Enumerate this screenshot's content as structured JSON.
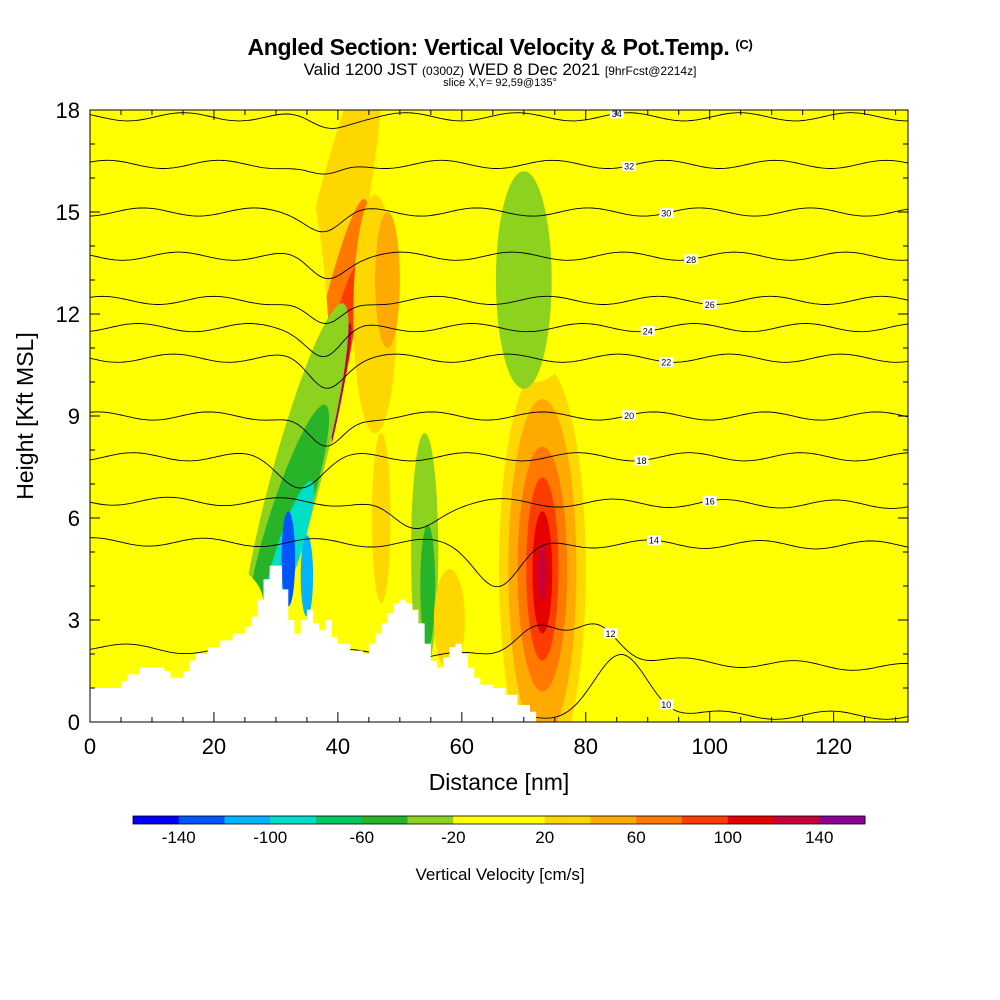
{
  "header": {
    "title": "Angled Section: Vertical Velocity & Pot.Temp.",
    "copyright_mark": "(C)",
    "subtitle_main_a": "Valid 1200 JST",
    "subtitle_z": "(0300Z)",
    "subtitle_main_b": "WED 8 Dec 2021",
    "subtitle_fcst": "[9hrFcst@2214z]",
    "slice_info": "slice X,Y= 92,59@135°"
  },
  "colors": {
    "background_field": "#ffff00",
    "terrain": "#ffffff",
    "isentrope": "#000000",
    "scale": [
      "#0000ff",
      "#0055ff",
      "#00b4ff",
      "#00e0c8",
      "#00c864",
      "#28b428",
      "#8cd21e",
      "#ffff00",
      "#ffd700",
      "#ffaa00",
      "#ff7800",
      "#ff3c00",
      "#e60000",
      "#c8003c",
      "#8c0096"
    ]
  },
  "chart_data": {
    "type": "heatmap",
    "xlabel": "Distance [nm]",
    "ylabel": "Height [Kft MSL]",
    "xlim": [
      0,
      132
    ],
    "ylim": [
      0,
      18
    ],
    "xticks": [
      0,
      20,
      40,
      60,
      80,
      100,
      120
    ],
    "yticks": [
      0,
      3,
      6,
      9,
      12,
      15,
      18
    ],
    "colorbar": {
      "title": "Vertical Velocity [cm/s]",
      "min": -160,
      "max": 160,
      "step": 20,
      "tick_values": [
        -140,
        -100,
        -60,
        -20,
        20,
        60,
        100,
        140
      ],
      "tick_labels": [
        "-140",
        "-100",
        "-60",
        "-20",
        "20",
        "60",
        "100",
        "140"
      ]
    },
    "vertical_velocity_cells": [
      {
        "x": 73,
        "y": 4.5,
        "rx": 7.0,
        "ry": 6.0,
        "w": 30
      },
      {
        "x": 73,
        "y": 4.5,
        "rx": 5.5,
        "ry": 5.0,
        "w": 50
      },
      {
        "x": 73,
        "y": 4.5,
        "rx": 4.0,
        "ry": 3.6,
        "w": 70
      },
      {
        "x": 73,
        "y": 4.5,
        "rx": 2.6,
        "ry": 2.7,
        "w": 90
      },
      {
        "x": 73,
        "y": 4.4,
        "rx": 1.6,
        "ry": 1.8,
        "w": 110
      },
      {
        "x": 73,
        "y": 4.4,
        "rx": 0.7,
        "ry": 0.8,
        "w": 130
      },
      {
        "x": 37,
        "y": 12,
        "rx": 4.5,
        "ry": 8.0,
        "rot": 12,
        "w": 30
      },
      {
        "x": 38,
        "y": 10,
        "rx": 3.0,
        "ry": 5.5,
        "rot": 12,
        "w": 60
      },
      {
        "x": 38.5,
        "y": 9.5,
        "rx": 2.0,
        "ry": 4.0,
        "rot": 12,
        "w": 90
      },
      {
        "x": 38.8,
        "y": 9.0,
        "rx": 1.2,
        "ry": 2.8,
        "rot": 12,
        "w": 120
      },
      {
        "x": 39.0,
        "y": 8.7,
        "rx": 0.5,
        "ry": 1.4,
        "rot": 12,
        "w": 145
      },
      {
        "x": 46,
        "y": 12,
        "rx": 3.5,
        "ry": 3.5,
        "w": 30
      },
      {
        "x": 48,
        "y": 13,
        "rx": 2.0,
        "ry": 2.0,
        "w": 45
      },
      {
        "x": 30,
        "y": 14,
        "rx": 1.8,
        "ry": 3.2,
        "w": 30
      },
      {
        "x": 31,
        "y": 8.5,
        "rx": 8.0,
        "ry": 9.0,
        "w": -10
      },
      {
        "x": 33,
        "y": 7,
        "rx": 4.0,
        "ry": 5.5,
        "rot": 15,
        "w": -30
      },
      {
        "x": 32,
        "y": 6,
        "rx": 3.0,
        "ry": 3.5,
        "rot": 18,
        "w": -60
      },
      {
        "x": 32,
        "y": 5,
        "rx": 2.0,
        "ry": 2.2,
        "rot": 18,
        "w": -90
      },
      {
        "x": 32,
        "y": 4.8,
        "rx": 1.1,
        "ry": 1.4,
        "w": -125
      },
      {
        "x": 35,
        "y": 4.3,
        "rx": 1.0,
        "ry": 1.2,
        "w": -110
      },
      {
        "x": 54,
        "y": 5,
        "rx": 2.2,
        "ry": 3.5,
        "w": -30
      },
      {
        "x": 54.5,
        "y": 4,
        "rx": 1.2,
        "ry": 1.8,
        "w": -60
      },
      {
        "x": 72,
        "y": 14.5,
        "rx": 9.0,
        "ry": 4.5,
        "w": -10
      },
      {
        "x": 70,
        "y": 13,
        "rx": 4.5,
        "ry": 3.2,
        "w": -25
      },
      {
        "x": 115,
        "y": 7,
        "rx": 16.0,
        "ry": 4.0,
        "w": -10
      },
      {
        "x": 127,
        "y": 16.5,
        "rx": 6.0,
        "ry": 2.5,
        "w": -10
      },
      {
        "x": 120,
        "y": 9.0,
        "rx": 12.0,
        "ry": 2.0,
        "w": -10
      },
      {
        "x": 14,
        "y": 3.5,
        "rx": 14.0,
        "ry": 1.5,
        "w": -10
      },
      {
        "x": 2.5,
        "y": 9.0,
        "rx": 1.3,
        "ry": 5.0,
        "w": -10
      },
      {
        "x": 14,
        "y": 16.0,
        "rx": 1.2,
        "ry": 2.2,
        "w": -10
      },
      {
        "x": 20,
        "y": 13.5,
        "rx": 0.8,
        "ry": 2.0,
        "w": -10
      },
      {
        "x": 58,
        "y": 3.0,
        "rx": 2.5,
        "ry": 1.5,
        "w": 30
      },
      {
        "x": 47,
        "y": 6.0,
        "rx": 1.5,
        "ry": 2.5,
        "w": 30
      }
    ],
    "terrain_profile": [
      [
        0,
        1.0
      ],
      [
        4,
        1.0
      ],
      [
        5,
        1.2
      ],
      [
        6,
        1.4
      ],
      [
        8,
        1.6
      ],
      [
        10,
        1.6
      ],
      [
        12,
        1.5
      ],
      [
        13,
        1.3
      ],
      [
        15,
        1.5
      ],
      [
        16,
        1.8
      ],
      [
        17,
        2.0
      ],
      [
        19,
        2.2
      ],
      [
        21,
        2.4
      ],
      [
        23,
        2.6
      ],
      [
        25,
        2.8
      ],
      [
        26,
        3.1
      ],
      [
        27,
        3.6
      ],
      [
        28,
        4.2
      ],
      [
        29,
        4.6
      ],
      [
        30,
        4.6
      ],
      [
        31,
        3.9
      ],
      [
        32,
        3.0
      ],
      [
        33,
        2.6
      ],
      [
        34,
        3.0
      ],
      [
        35,
        3.3
      ],
      [
        36,
        2.9
      ],
      [
        37,
        2.7
      ],
      [
        38,
        3.0
      ],
      [
        39,
        2.5
      ],
      [
        40,
        2.3
      ],
      [
        42,
        2.1
      ],
      [
        44,
        2.0
      ],
      [
        45,
        2.3
      ],
      [
        46,
        2.6
      ],
      [
        47,
        2.9
      ],
      [
        48,
        3.2
      ],
      [
        49,
        3.5
      ],
      [
        50,
        3.6
      ],
      [
        51,
        3.5
      ],
      [
        52,
        3.3
      ],
      [
        53,
        2.9
      ],
      [
        54,
        2.3
      ],
      [
        55,
        1.8
      ],
      [
        56,
        1.6
      ],
      [
        57,
        1.9
      ],
      [
        58,
        2.2
      ],
      [
        59,
        2.3
      ],
      [
        60,
        2.0
      ],
      [
        61,
        1.6
      ],
      [
        62,
        1.3
      ],
      [
        63,
        1.1
      ],
      [
        65,
        1.0
      ],
      [
        67,
        0.8
      ],
      [
        69,
        0.5
      ],
      [
        71,
        0.3
      ],
      [
        72,
        0.0
      ],
      [
        132,
        0.0
      ]
    ],
    "isentropes": [
      {
        "theta": 10,
        "label": "10",
        "label_x": 93,
        "y_left": 0.2,
        "y_right": 0.2,
        "bumps": [
          [
            86,
            1.7,
            6
          ]
        ]
      },
      {
        "theta": 12,
        "label": "12",
        "label_x": 84,
        "y_left": 2.2,
        "y_right": 1.6,
        "bumps": [
          [
            72,
            1.0,
            5
          ],
          [
            82,
            1.0,
            5
          ]
        ]
      },
      {
        "theta": 14,
        "label": "14",
        "label_x": 91,
        "y_left": 5.3,
        "y_right": 5.2,
        "bumps": [
          [
            66,
            -1.2,
            5
          ]
        ]
      },
      {
        "theta": 16,
        "label": "16",
        "label_x": 100,
        "y_left": 6.5,
        "y_right": 6.4,
        "bumps": [
          [
            52,
            -0.8,
            5
          ]
        ]
      },
      {
        "theta": 18,
        "label": "18",
        "label_x": 89,
        "y_left": 7.8,
        "y_right": 7.8,
        "bumps": [
          [
            34,
            -0.8,
            5
          ]
        ]
      },
      {
        "theta": 20,
        "label": "20",
        "label_x": 87,
        "y_left": 9.0,
        "y_right": 9.0,
        "bumps": [
          [
            38,
            -1.0,
            4
          ]
        ]
      },
      {
        "theta": 22,
        "label": "22",
        "label_x": 93,
        "y_left": 10.7,
        "y_right": 10.7,
        "bumps": [
          [
            38,
            -0.8,
            4
          ]
        ]
      },
      {
        "theta": 24,
        "label": "24",
        "label_x": 90,
        "y_left": 11.6,
        "y_right": 11.6,
        "bumps": [
          [
            38,
            -0.8,
            4
          ]
        ]
      },
      {
        "theta": 26,
        "label": "26",
        "label_x": 100,
        "y_left": 12.4,
        "y_right": 12.4,
        "bumps": [
          [
            38,
            -0.8,
            4
          ]
        ]
      },
      {
        "theta": 28,
        "label": "28",
        "label_x": 97,
        "y_left": 13.7,
        "y_right": 13.7,
        "bumps": [
          [
            38,
            -0.6,
            4
          ]
        ]
      },
      {
        "theta": 30,
        "label": "30",
        "label_x": 93,
        "y_left": 15.0,
        "y_right": 15.0,
        "bumps": [
          [
            38,
            -0.5,
            4
          ]
        ]
      },
      {
        "theta": 32,
        "label": "32",
        "label_x": 87,
        "y_left": 16.4,
        "y_right": 16.4,
        "bumps": [
          [
            38,
            -0.4,
            4
          ]
        ]
      },
      {
        "theta": 34,
        "label": "34",
        "label_x": 85,
        "y_left": 17.8,
        "y_right": 17.8,
        "bumps": [
          [
            38,
            -0.3,
            4
          ]
        ]
      }
    ]
  }
}
